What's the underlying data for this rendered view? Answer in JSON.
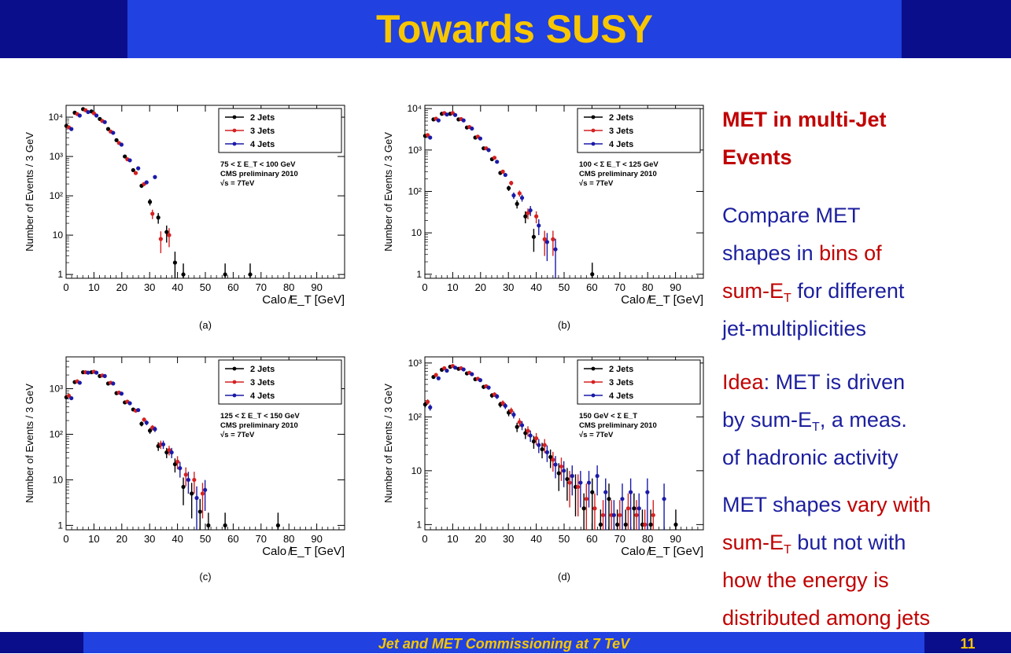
{
  "slide": {
    "title": "Towards SUSY",
    "footer": "Jet and MET Commissioning at 7 TeV",
    "page_number": "11"
  },
  "sidebar": {
    "heading_1": "MET  in multi-Jet",
    "heading_2": "Events",
    "p1": {
      "a": "Compare MET",
      "b": "shapes in ",
      "c": "bins of",
      "d": "sum-E",
      "e": "T",
      "f": " for different",
      "g": "jet-multiplicities"
    },
    "p2": {
      "a": "Idea",
      "b": ": MET is driven",
      "c": "by sum-E",
      "d": "T",
      "e": ", a meas.",
      "f": "of hadronic  activity"
    },
    "p3": {
      "a": "MET shapes ",
      "b": "vary with",
      "c": "sum-E",
      "d": "T",
      "e": " but not with",
      "f": "how the energy is",
      "g": "distributed among jets"
    }
  },
  "colors": {
    "header_dark": "#0b0e8a",
    "header_blue": "#2141e0",
    "title_yellow": "#f7c600",
    "text_blue": "#1c1f9e",
    "text_red": "#c00000",
    "series_2jets": "#000000",
    "series_3jets": "#d62020",
    "series_4jets": "#1a1aa8"
  },
  "chart_data": [
    {
      "type": "scatter",
      "panel_label": "(a)",
      "ylog": true,
      "xlim": [
        0,
        100
      ],
      "ylim": [
        0.8,
        20000
      ],
      "xlabel": "Calo ̸E_T [GeV]",
      "ylabel": "Number of Events / 3 GeV",
      "x_ticks": [
        "0",
        "10",
        "20",
        "30",
        "40",
        "50",
        "60",
        "70",
        "80",
        "90"
      ],
      "y_ticks": [
        "1",
        "10",
        "10²",
        "10³",
        "10⁴"
      ],
      "legend": [
        "2 Jets",
        "3 Jets",
        "4 Jets"
      ],
      "annotation": [
        "75 < Σ E_T < 100 GeV",
        "CMS preliminary 2010",
        "√s = 7TeV"
      ],
      "series": [
        {
          "name": "2 Jets",
          "x": [
            1,
            4,
            7,
            10,
            13,
            16,
            19,
            22,
            25,
            28,
            31,
            34,
            37,
            40,
            43,
            58,
            67
          ],
          "y": [
            6000,
            13000,
            16000,
            14000,
            9000,
            5000,
            2600,
            1000,
            450,
            180,
            70,
            28,
            12,
            2,
            1,
            1,
            1
          ]
        },
        {
          "name": "3 Jets",
          "x": [
            1,
            4,
            7,
            10,
            13,
            16,
            19,
            22,
            25,
            28,
            31,
            34,
            37
          ],
          "y": [
            5500,
            12000,
            15000,
            12500,
            8000,
            4300,
            2200,
            850,
            380,
            200,
            35,
            8,
            10
          ]
        },
        {
          "name": "4 Jets",
          "x": [
            1,
            4,
            7,
            10,
            13,
            16,
            19,
            22,
            25,
            28,
            31
          ],
          "y": [
            5000,
            11000,
            13500,
            11000,
            7500,
            4000,
            2000,
            800,
            500,
            220,
            300
          ]
        }
      ]
    },
    {
      "type": "scatter",
      "panel_label": "(b)",
      "ylog": true,
      "xlim": [
        0,
        100
      ],
      "ylim": [
        0.8,
        12000
      ],
      "xlabel": "Calo ̸E_T [GeV]",
      "ylabel": "Number of Events / 3 GeV",
      "x_ticks": [
        "0",
        "10",
        "20",
        "30",
        "40",
        "50",
        "60",
        "70",
        "80",
        "90"
      ],
      "y_ticks": [
        "1",
        "10",
        "10²",
        "10³",
        "10⁴"
      ],
      "legend": [
        "2 Jets",
        "3 Jets",
        "4 Jets"
      ],
      "annotation": [
        "100 < Σ E_T < 125 GeV",
        "CMS preliminary 2010",
        "√s = 7TeV"
      ],
      "series": [
        {
          "name": "2 Jets",
          "x": [
            1,
            4,
            7,
            10,
            13,
            16,
            19,
            22,
            25,
            28,
            31,
            34,
            37,
            40,
            61
          ],
          "y": [
            2200,
            5500,
            7500,
            7500,
            5500,
            3500,
            2000,
            1100,
            600,
            280,
            120,
            50,
            25,
            8,
            1
          ]
        },
        {
          "name": "3 Jets",
          "x": [
            1,
            4,
            7,
            10,
            13,
            16,
            19,
            22,
            25,
            28,
            31,
            34,
            37,
            40,
            43,
            46
          ],
          "y": [
            2300,
            5700,
            7800,
            7800,
            5600,
            3600,
            2100,
            1100,
            650,
            300,
            160,
            90,
            30,
            25,
            7,
            7
          ]
        },
        {
          "name": "4 Jets",
          "x": [
            1,
            4,
            7,
            10,
            13,
            16,
            19,
            22,
            25,
            28,
            31,
            34,
            37,
            40,
            43,
            46
          ],
          "y": [
            2000,
            5200,
            7200,
            7000,
            5200,
            3300,
            1900,
            1000,
            520,
            250,
            80,
            70,
            35,
            15,
            6,
            4
          ]
        }
      ]
    },
    {
      "type": "scatter",
      "panel_label": "(c)",
      "ylog": true,
      "xlim": [
        0,
        100
      ],
      "ylim": [
        0.8,
        5000
      ],
      "xlabel": "Calo ̸E_T [GeV]",
      "ylabel": "Number of Events / 3 GeV",
      "x_ticks": [
        "0",
        "10",
        "20",
        "30",
        "40",
        "50",
        "60",
        "70",
        "80",
        "90"
      ],
      "y_ticks": [
        "1",
        "10",
        "10²",
        "10³"
      ],
      "legend": [
        "2 Jets",
        "3 Jets",
        "4 Jets"
      ],
      "annotation": [
        "125 < Σ E_T < 150 GeV",
        "CMS preliminary 2010",
        "√s = 7TeV"
      ],
      "series": [
        {
          "name": "2 Jets",
          "x": [
            1,
            4,
            7,
            10,
            13,
            16,
            19,
            22,
            25,
            28,
            31,
            34,
            37,
            40,
            43,
            46,
            49,
            52,
            58,
            77
          ],
          "y": [
            650,
            1400,
            2300,
            2300,
            1900,
            1300,
            800,
            500,
            350,
            170,
            120,
            55,
            40,
            22,
            7,
            5,
            2,
            1,
            1,
            1
          ]
        },
        {
          "name": "3 Jets",
          "x": [
            1,
            4,
            7,
            10,
            13,
            16,
            19,
            22,
            25,
            28,
            31,
            34,
            37,
            40,
            43,
            46,
            49
          ],
          "y": [
            700,
            1450,
            2300,
            2350,
            1950,
            1350,
            820,
            520,
            330,
            210,
            140,
            60,
            45,
            25,
            13,
            10,
            5
          ]
        },
        {
          "name": "4 Jets",
          "x": [
            1,
            4,
            7,
            10,
            13,
            16,
            19,
            22,
            25,
            28,
            31,
            34,
            37,
            40,
            43,
            46,
            49
          ],
          "y": [
            620,
            1350,
            2250,
            2250,
            1900,
            1300,
            780,
            480,
            340,
            180,
            130,
            60,
            40,
            18,
            10,
            4,
            6
          ]
        }
      ]
    },
    {
      "type": "scatter",
      "panel_label": "(d)",
      "ylog": true,
      "xlim": [
        0,
        100
      ],
      "ylim": [
        0.8,
        1300
      ],
      "xlabel": "Calo ̸E_T [GeV]",
      "ylabel": "Number of Events / 3 GeV",
      "x_ticks": [
        "0",
        "10",
        "20",
        "30",
        "40",
        "50",
        "60",
        "70",
        "80",
        "90"
      ],
      "y_ticks": [
        "1",
        "10",
        "10²",
        "10³"
      ],
      "legend": [
        "2 Jets",
        "3 Jets",
        "4 Jets"
      ],
      "annotation": [
        "150 GeV < Σ E_T",
        "CMS preliminary 2010",
        "√s = 7TeV"
      ],
      "series": [
        {
          "name": "2 Jets",
          "x": [
            1,
            4,
            7,
            10,
            13,
            16,
            19,
            22,
            25,
            28,
            31,
            34,
            37,
            40,
            43,
            46,
            49,
            52,
            55,
            58,
            61,
            64,
            67,
            70,
            73,
            76,
            79,
            82,
            91
          ],
          "y": [
            170,
            550,
            750,
            850,
            780,
            640,
            500,
            360,
            250,
            170,
            120,
            65,
            50,
            35,
            25,
            18,
            9,
            7,
            5,
            2,
            4,
            1,
            3,
            1,
            1,
            2,
            1,
            1,
            1
          ]
        },
        {
          "name": "3 Jets",
          "x": [
            1,
            4,
            7,
            10,
            13,
            16,
            19,
            22,
            25,
            28,
            31,
            34,
            37,
            40,
            43,
            46,
            49,
            52,
            55,
            58,
            61,
            64,
            67,
            70,
            73,
            76,
            79,
            82
          ],
          "y": [
            190,
            600,
            800,
            880,
            800,
            660,
            510,
            370,
            260,
            180,
            130,
            80,
            55,
            40,
            30,
            16,
            12,
            6,
            5,
            3,
            2,
            1.5,
            1.5,
            1.5,
            2,
            1.5,
            1,
            1.5
          ]
        },
        {
          "name": "4 Jets",
          "x": [
            1,
            4,
            7,
            10,
            13,
            16,
            19,
            22,
            25,
            28,
            31,
            34,
            37,
            40,
            43,
            46,
            49,
            52,
            55,
            58,
            61,
            64,
            67,
            70,
            73,
            76,
            79,
            85
          ],
          "y": [
            150,
            520,
            720,
            820,
            760,
            620,
            480,
            350,
            240,
            160,
            110,
            70,
            45,
            30,
            22,
            13,
            10,
            8,
            6,
            6,
            8,
            4,
            1.5,
            3,
            4,
            2,
            4,
            3
          ]
        }
      ]
    }
  ]
}
